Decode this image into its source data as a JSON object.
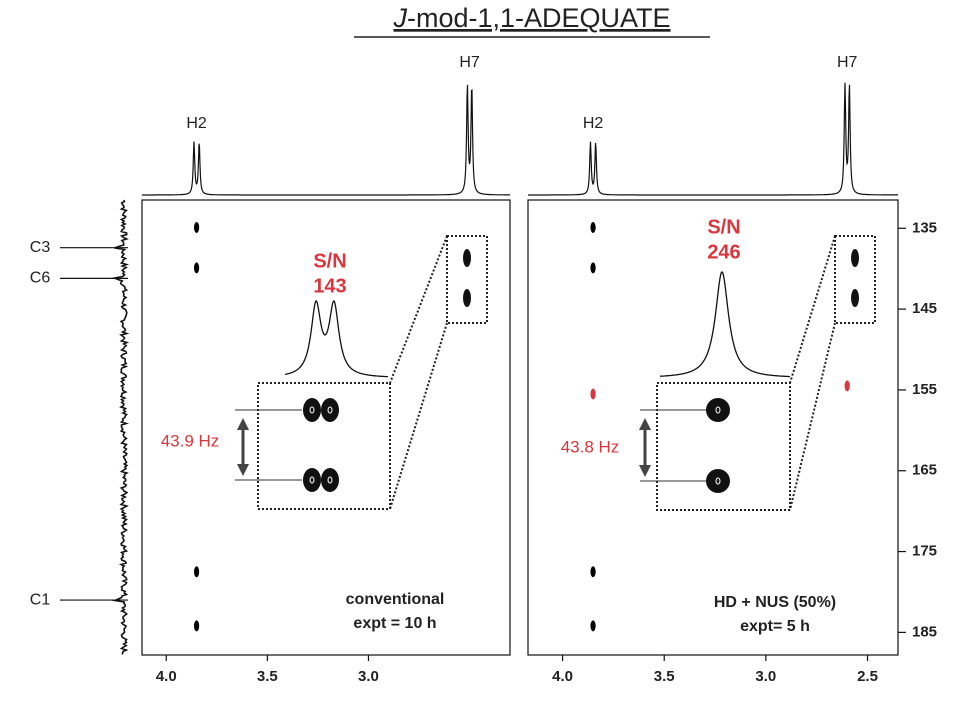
{
  "title_italic": "J",
  "title": "-mod-1,1-ADEQUATE",
  "chart_data": [
    {
      "type": "scatter",
      "x": [
        3.85,
        3.85,
        3.85,
        3.85
      ],
      "y": [
        134.9,
        139.9,
        177.5,
        184.2
      ],
      "point_colors": [
        "#000000",
        "#000000",
        "#000000",
        "#000000"
      ],
      "xlim": [
        4.12,
        2.3
      ],
      "xticks": [
        {
          "value": 4,
          "label": "4.0"
        },
        3.5,
        {
          "value": 3,
          "label": "3.0"
        }
      ],
      "ylim": [
        131.5,
        187.8
      ],
      "peak_labels": [
        {
          "text": "H2",
          "x": 3.85
        },
        {
          "text": "H7",
          "x": 2.5
        }
      ],
      "row_labels": [
        {
          "text": "C3",
          "y": 137.4
        },
        {
          "text": "C6",
          "y": 141.2
        },
        {
          "text": "C1",
          "y": 181
        }
      ],
      "inset": {
        "sn_label": "S/N",
        "sn_value": 143,
        "coupling": "43.9 Hz"
      },
      "note": [
        "conventional",
        "expt = 10 h"
      ]
    },
    {
      "type": "scatter",
      "x": [
        3.85,
        3.85,
        3.85,
        3.85,
        3.85,
        2.6
      ],
      "y": [
        134.9,
        139.9,
        155.5,
        177.5,
        184.2,
        154.5
      ],
      "point_colors": [
        "#000000",
        "#000000",
        "#d9373d",
        "#000000",
        "#000000",
        "#d9373d"
      ],
      "xlim": [
        4.17,
        2.35
      ],
      "xticks": [
        {
          "value": 4,
          "label": "4.0"
        },
        3.5,
        {
          "value": 3,
          "label": "3.0"
        },
        2.5
      ],
      "ylim": [
        131.5,
        187.8
      ],
      "yticks": [
        135,
        145,
        155,
        165,
        175,
        185
      ],
      "peak_labels": [
        {
          "text": "H2",
          "x": 3.85
        },
        {
          "text": "H7",
          "x": 2.6
        }
      ],
      "inset": {
        "sn_label": "S/N",
        "sn_value": 246,
        "coupling": "43.8 Hz"
      },
      "note": [
        "HD + NUS (50%)",
        "expt= 5 h"
      ]
    }
  ]
}
